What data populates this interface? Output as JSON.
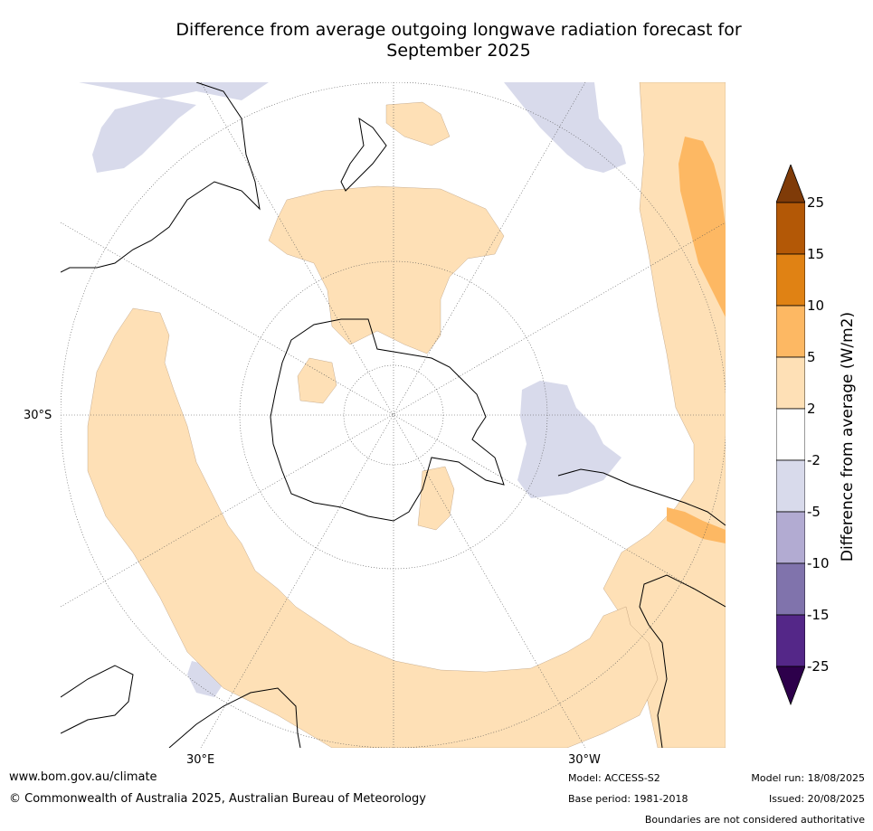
{
  "title_line1": "Difference from average outgoing longwave radiation forecast for",
  "title_line2": "September 2025",
  "labels": {
    "lat": "30°S",
    "lon_left": "30°E",
    "lon_right": "30°W"
  },
  "colorbar": {
    "label": "Difference from average (W/m2)",
    "ticks": [
      "25",
      "15",
      "10",
      "5",
      "2",
      "-2",
      "-5",
      "-10",
      "-15",
      "-25"
    ],
    "colors": [
      "#7f3b08",
      "#b35806",
      "#e08214",
      "#fdb863",
      "#fee0b6",
      "#ffffff",
      "#d8daeb",
      "#b2abd2",
      "#8073ac",
      "#542788",
      "#2d004b"
    ]
  },
  "footer": {
    "website": "www.bom.gov.au/climate",
    "copyright": "© Commonwealth of Australia 2025, Australian Bureau of Meteorology",
    "model": "Model: ACCESS-S2",
    "base_period": "Base period: 1981-2018",
    "model_run": "Model run: 18/08/2025",
    "issued": "Issued: 20/08/2025",
    "disclaimer": "Boundaries are not considered authoritative"
  }
}
